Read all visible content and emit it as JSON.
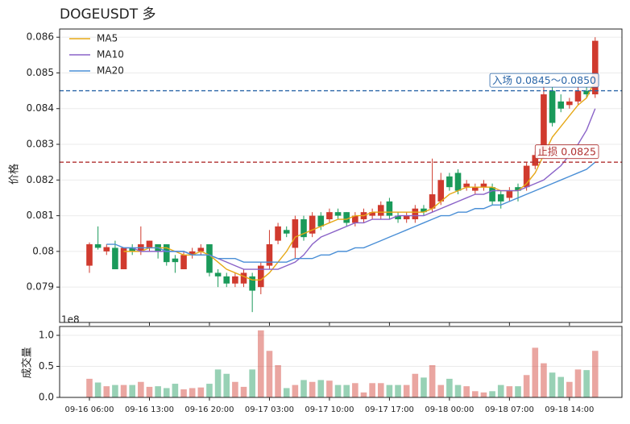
{
  "chart_data": {
    "type": "candlestick",
    "title": "DOGEUSDT  多",
    "ylabel": "价格",
    "categories": [
      "09-16 06:00",
      null,
      null,
      null,
      null,
      null,
      null,
      "09-16 13:00",
      null,
      null,
      null,
      null,
      null,
      null,
      "09-16 20:00",
      null,
      null,
      null,
      null,
      null,
      null,
      "09-17 03:00",
      null,
      null,
      null,
      null,
      null,
      null,
      "09-17 10:00",
      null,
      null,
      null,
      null,
      null,
      null,
      "09-17 17:00",
      null,
      null,
      null,
      null,
      null,
      null,
      "09-18 00:00",
      null,
      null,
      null,
      null,
      null,
      null,
      "09-18 07:00",
      null,
      null,
      null,
      null,
      null,
      null,
      "09-18 14:00",
      null,
      null,
      null
    ],
    "open": [
      0.0796,
      0.0802,
      0.08,
      0.0801,
      0.0795,
      0.0801,
      0.08,
      0.0801,
      0.0802,
      0.0802,
      0.0798,
      0.0795,
      0.0799,
      0.08,
      0.0802,
      0.0794,
      0.0793,
      0.0791,
      0.0791,
      0.0793,
      0.079,
      0.0796,
      0.0803,
      0.0806,
      0.0801,
      0.0809,
      0.0805,
      0.081,
      0.0809,
      0.0811,
      0.0811,
      0.0808,
      0.0809,
      0.081,
      0.081,
      0.0814,
      0.081,
      0.0809,
      0.0809,
      0.0812,
      0.0812,
      0.0814,
      0.0821,
      0.0822,
      0.0818,
      0.0817,
      0.0818,
      0.0818,
      0.0816,
      0.0815,
      0.0818,
      0.0818,
      0.0824,
      0.0827,
      0.0845,
      0.0842,
      0.0841,
      0.0842,
      0.0845,
      0.0844
    ],
    "high": [
      0.08025,
      0.0807,
      0.0802,
      0.0803,
      0.0801,
      0.0802,
      0.0807,
      0.0803,
      0.0802,
      0.0802,
      0.0799,
      0.08,
      0.0801,
      0.0802,
      0.0802,
      0.0795,
      0.0794,
      0.0794,
      0.0795,
      0.0794,
      0.0797,
      0.0806,
      0.0808,
      0.0807,
      0.081,
      0.081,
      0.0811,
      0.0811,
      0.0812,
      0.0812,
      0.0811,
      0.0811,
      0.0812,
      0.0812,
      0.0814,
      0.0815,
      0.0811,
      0.0811,
      0.0813,
      0.0813,
      0.0826,
      0.0822,
      0.0822,
      0.0823,
      0.082,
      0.0819,
      0.082,
      0.0819,
      0.0817,
      0.0818,
      0.0819,
      0.0825,
      0.0828,
      0.0847,
      0.0846,
      0.0844,
      0.0843,
      0.0846,
      0.0846,
      0.086
    ],
    "low": [
      0.0794,
      0.08005,
      0.0799,
      0.0795,
      0.0795,
      0.0799,
      0.0799,
      0.08,
      0.0798,
      0.0796,
      0.0794,
      0.0795,
      0.0798,
      0.0799,
      0.0793,
      0.079,
      0.079,
      0.079,
      0.079,
      0.0783,
      0.0788,
      0.0795,
      0.0802,
      0.0804,
      0.0798,
      0.0803,
      0.0804,
      0.0806,
      0.0808,
      0.0809,
      0.0807,
      0.0807,
      0.0808,
      0.0809,
      0.0809,
      0.0809,
      0.0808,
      0.0808,
      0.0808,
      0.081,
      0.0811,
      0.0813,
      0.0817,
      0.0816,
      0.0817,
      0.0816,
      0.0817,
      0.0813,
      0.0812,
      0.0814,
      0.0814,
      0.0817,
      0.0823,
      0.0826,
      0.0835,
      0.0839,
      0.084,
      0.0841,
      0.0843,
      0.0843
    ],
    "close": [
      0.0802,
      0.0801,
      0.08012,
      0.0795,
      0.0801,
      0.08,
      0.0802,
      0.0803,
      0.08,
      0.0797,
      0.0797,
      0.0799,
      0.08,
      0.0801,
      0.0794,
      0.0793,
      0.0791,
      0.0793,
      0.0794,
      0.0789,
      0.0796,
      0.0802,
      0.0807,
      0.0805,
      0.0809,
      0.0804,
      0.081,
      0.0807,
      0.0811,
      0.081,
      0.0808,
      0.081,
      0.0811,
      0.0811,
      0.0813,
      0.081,
      0.0809,
      0.081,
      0.0812,
      0.0811,
      0.0816,
      0.082,
      0.0818,
      0.0817,
      0.0819,
      0.0818,
      0.0819,
      0.0814,
      0.0814,
      0.0817,
      0.0817,
      0.0824,
      0.0827,
      0.0844,
      0.0836,
      0.084,
      0.0842,
      0.0845,
      0.0844,
      0.0859
    ],
    "up_color": "#d03a2e",
    "down_color": "#1a9a5a",
    "ylim": [
      0.07801,
      0.08623
    ],
    "yticks": [
      0.079,
      0.08,
      0.081,
      0.082,
      0.083,
      0.084,
      0.085,
      0.086
    ],
    "grid": true,
    "legend": "upper left",
    "series": [
      {
        "name": "MA5",
        "color": "#e6a817",
        "values": [
          null,
          null,
          null,
          null,
          0.08,
          0.08,
          0.08,
          0.0801,
          0.0801,
          0.0801,
          0.08,
          0.0799,
          0.0799,
          0.08,
          0.0799,
          0.0797,
          0.0795,
          0.0794,
          0.0793,
          0.0792,
          0.0792,
          0.0794,
          0.0797,
          0.08,
          0.0804,
          0.0805,
          0.0806,
          0.0807,
          0.0808,
          0.0809,
          0.0809,
          0.081,
          0.081,
          0.0811,
          0.0811,
          0.0811,
          0.0811,
          0.0811,
          0.0811,
          0.0811,
          0.0812,
          0.0814,
          0.0816,
          0.0817,
          0.0818,
          0.0818,
          0.0818,
          0.0818,
          0.0817,
          0.0817,
          0.0817,
          0.0819,
          0.0822,
          0.0827,
          0.0832,
          0.0835,
          0.0838,
          0.0841,
          0.0843,
          0.0848
        ]
      },
      {
        "name": "MA10",
        "color": "#8a63c8",
        "values": [
          null,
          null,
          null,
          null,
          0.0801,
          0.0801,
          0.08,
          0.08,
          0.08,
          0.08,
          0.08,
          0.08,
          0.0799,
          0.0799,
          0.0799,
          0.0798,
          0.0797,
          0.0796,
          0.0795,
          0.0795,
          0.0795,
          0.0795,
          0.0795,
          0.0796,
          0.0797,
          0.0799,
          0.0802,
          0.0804,
          0.0805,
          0.0806,
          0.0807,
          0.0808,
          0.0808,
          0.0809,
          0.0809,
          0.0809,
          0.081,
          0.081,
          0.081,
          0.081,
          0.0811,
          0.0812,
          0.0813,
          0.0814,
          0.0815,
          0.0816,
          0.0816,
          0.0817,
          0.0817,
          0.0817,
          0.0817,
          0.0818,
          0.0819,
          0.082,
          0.0822,
          0.0824,
          0.0827,
          0.083,
          0.0834,
          0.084
        ]
      },
      {
        "name": "MA20",
        "color": "#4a8fd6",
        "values": [
          null,
          null,
          0.0802,
          0.0802,
          0.0801,
          0.0801,
          0.0801,
          0.0801,
          0.0801,
          0.08,
          0.08,
          0.08,
          0.0799,
          0.0799,
          0.0799,
          0.0798,
          0.0798,
          0.0798,
          0.0797,
          0.0797,
          0.0797,
          0.0797,
          0.0797,
          0.0797,
          0.0798,
          0.0798,
          0.0798,
          0.0799,
          0.0799,
          0.08,
          0.08,
          0.0801,
          0.0801,
          0.0802,
          0.0803,
          0.0804,
          0.0805,
          0.0806,
          0.0807,
          0.0808,
          0.0809,
          0.081,
          0.081,
          0.0811,
          0.0811,
          0.0812,
          0.0812,
          0.0813,
          0.0813,
          0.0814,
          0.0815,
          0.0816,
          0.0817,
          0.0818,
          0.0819,
          0.082,
          0.0821,
          0.0822,
          0.0823,
          0.0825
        ]
      }
    ],
    "annotations": [
      {
        "label": "入场 0.0845～0.0850",
        "value": 0.0845,
        "color": "#2a66a8"
      },
      {
        "label": "止损 0.0825",
        "value": 0.0825,
        "color": "#b03030"
      }
    ],
    "volume": {
      "ylabel": "成交量",
      "offset_label": "1e8",
      "ylim": [
        0,
        1.143
      ],
      "yticks": [
        {
          "value": 0,
          "label": "0.0"
        },
        0.5,
        {
          "value": 1,
          "label": "1.0"
        }
      ],
      "values": [
        0.3,
        0.24,
        0.18,
        0.2,
        0.2,
        0.2,
        0.25,
        0.17,
        0.18,
        0.15,
        0.22,
        0.13,
        0.15,
        0.16,
        0.22,
        0.45,
        0.38,
        0.25,
        0.17,
        0.45,
        1.08,
        0.75,
        0.52,
        0.15,
        0.2,
        0.28,
        0.25,
        0.28,
        0.27,
        0.2,
        0.2,
        0.23,
        0.08,
        0.23,
        0.23,
        0.2,
        0.2,
        0.2,
        0.38,
        0.32,
        0.52,
        0.2,
        0.3,
        0.2,
        0.18,
        0.1,
        0.08,
        0.1,
        0.2,
        0.18,
        0.18,
        0.36,
        0.8,
        0.55,
        0.4,
        0.33,
        0.25,
        0.45,
        0.44,
        0.75
      ]
    }
  }
}
